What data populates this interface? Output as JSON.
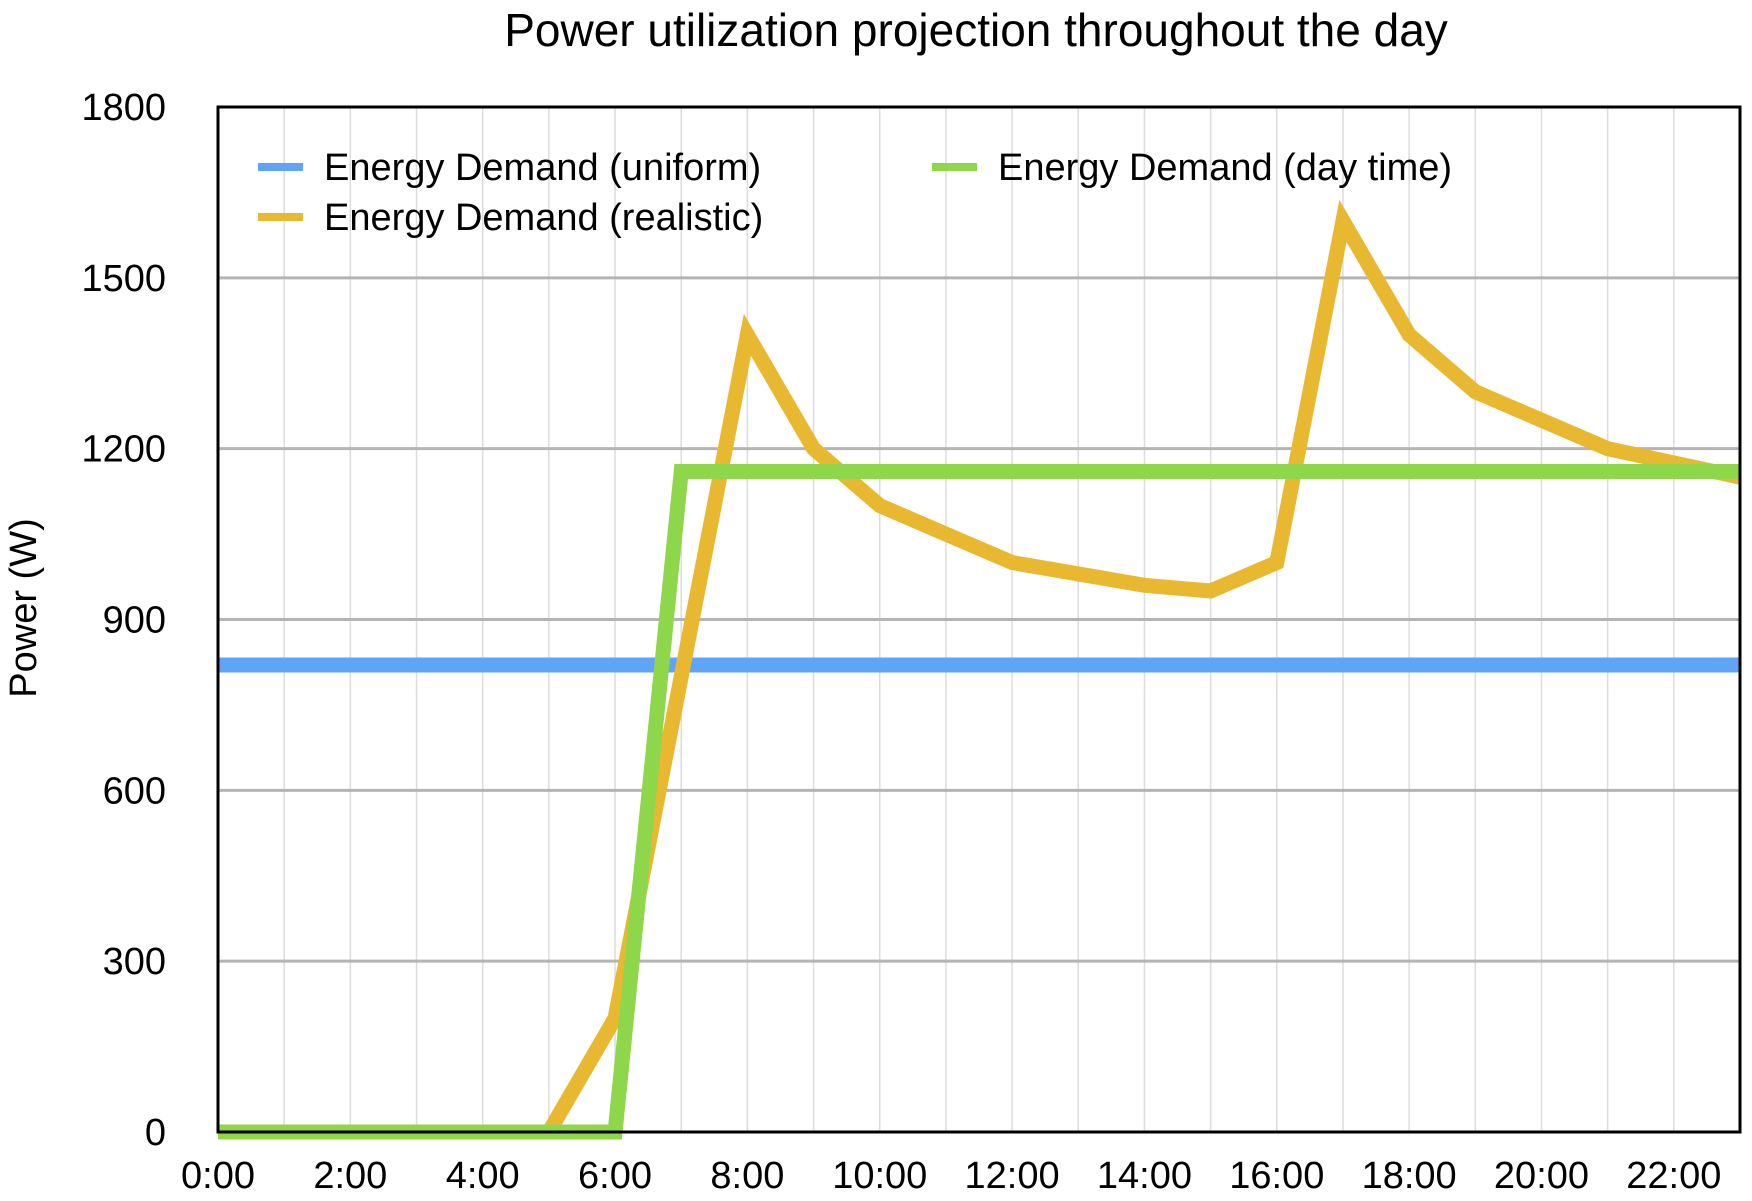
{
  "chart_data": {
    "type": "line",
    "title": "Power utilization projection throughout the day",
    "xlabel": "",
    "ylabel": "Power (W)",
    "x": [
      "0:00",
      "1:00",
      "2:00",
      "3:00",
      "4:00",
      "5:00",
      "6:00",
      "7:00",
      "8:00",
      "9:00",
      "10:00",
      "11:00",
      "12:00",
      "13:00",
      "14:00",
      "15:00",
      "16:00",
      "17:00",
      "18:00",
      "19:00",
      "20:00",
      "21:00",
      "22:00",
      "23:00"
    ],
    "x_tick_labels": [
      "0:00",
      "2:00",
      "4:00",
      "6:00",
      "8:00",
      "10:00",
      "12:00",
      "14:00",
      "16:00",
      "18:00",
      "20:00",
      "22:00"
    ],
    "y_tick_labels": [
      "0",
      "300",
      "600",
      "900",
      "1200",
      "1500",
      "1800"
    ],
    "xlim": [
      0,
      23
    ],
    "ylim": [
      0,
      1800
    ],
    "grid": true,
    "legend_position": "top",
    "series": [
      {
        "name": "Energy Demand (uniform)",
        "color": "#5fa4f7",
        "values": [
          820,
          820,
          820,
          820,
          820,
          820,
          820,
          820,
          820,
          820,
          820,
          820,
          820,
          820,
          820,
          820,
          820,
          820,
          820,
          820,
          820,
          820,
          820,
          820
        ]
      },
      {
        "name": "Energy Demand (realistic)",
        "color": "#e8b830",
        "values": [
          0,
          0,
          0,
          0,
          0,
          0,
          200,
          800,
          1400,
          1200,
          1100,
          1050,
          1000,
          980,
          960,
          950,
          1000,
          1600,
          1400,
          1300,
          1250,
          1200,
          1175,
          1150
        ]
      },
      {
        "name": "Energy Demand (day time)",
        "color": "#8ed64a",
        "values": [
          0,
          0,
          0,
          0,
          0,
          0,
          0,
          1160,
          1160,
          1160,
          1160,
          1160,
          1160,
          1160,
          1160,
          1160,
          1160,
          1160,
          1160,
          1160,
          1160,
          1160,
          1160,
          1160
        ]
      }
    ]
  }
}
